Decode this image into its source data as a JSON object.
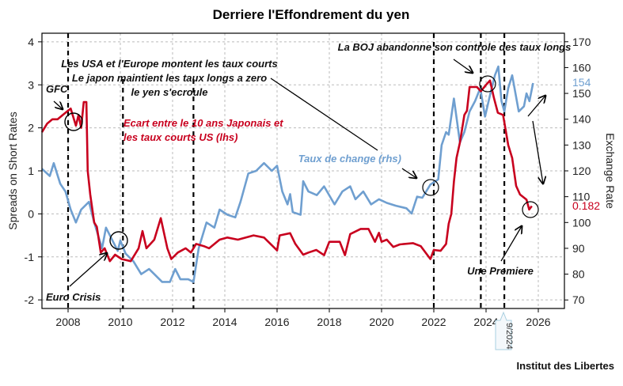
{
  "chart_data": {
    "type": "line",
    "title": "Derriere l'Effondrement du yen",
    "ylabel_left": "Spreads on Short Rates",
    "ylabel_right": "Exchange Rate",
    "xlim": [
      2007,
      2027
    ],
    "ylim_left": [
      -2.2,
      4.2
    ],
    "ylim_right": [
      66.7,
      173.3
    ],
    "x_ticks": [
      2008,
      2010,
      2012,
      2014,
      2016,
      2018,
      2020,
      2022,
      2024,
      2026
    ],
    "y_ticks_left": [
      -2,
      -1,
      0,
      1,
      2,
      3,
      4
    ],
    "y_ticks_right": [
      70,
      80,
      90,
      100,
      110,
      120,
      130,
      140,
      150,
      160,
      170
    ],
    "grid": true,
    "vertical_lines": [
      2008,
      2010.1,
      2012.8,
      2022,
      2023.8,
      2024.7
    ],
    "series": [
      {
        "name": "Ecart entre le 10 ans Japonais et les taux courts US (lhs)",
        "axis": "left",
        "color": "#c8001e",
        "points": [
          [
            2007.0,
            1.9
          ],
          [
            2007.2,
            2.1
          ],
          [
            2007.4,
            2.2
          ],
          [
            2007.6,
            2.2
          ],
          [
            2007.8,
            2.3
          ],
          [
            2008.0,
            2.4
          ],
          [
            2008.1,
            2.45
          ],
          [
            2008.3,
            2.05
          ],
          [
            2008.4,
            2.3
          ],
          [
            2008.5,
            2.0
          ],
          [
            2008.6,
            2.6
          ],
          [
            2008.7,
            2.6
          ],
          [
            2008.75,
            1.0
          ],
          [
            2008.85,
            0.45
          ],
          [
            2009.0,
            -0.2
          ],
          [
            2009.1,
            -0.3
          ],
          [
            2009.25,
            -0.9
          ],
          [
            2009.4,
            -0.8
          ],
          [
            2009.6,
            -1.1
          ],
          [
            2009.8,
            -0.95
          ],
          [
            2010.05,
            -1.05
          ],
          [
            2010.4,
            -1.1
          ],
          [
            2010.7,
            -0.8
          ],
          [
            2010.85,
            -0.4
          ],
          [
            2011.0,
            -0.8
          ],
          [
            2011.3,
            -0.6
          ],
          [
            2011.55,
            -0.1
          ],
          [
            2011.8,
            -0.8
          ],
          [
            2011.95,
            -1.05
          ],
          [
            2012.2,
            -0.9
          ],
          [
            2012.5,
            -0.8
          ],
          [
            2012.7,
            -0.9
          ],
          [
            2012.9,
            -0.7
          ],
          [
            2013.2,
            -0.75
          ],
          [
            2013.4,
            -0.8
          ],
          [
            2013.8,
            -0.6
          ],
          [
            2014.1,
            -0.55
          ],
          [
            2014.5,
            -0.6
          ],
          [
            2015.1,
            -0.5
          ],
          [
            2015.5,
            -0.55
          ],
          [
            2016.0,
            -0.85
          ],
          [
            2016.1,
            -0.5
          ],
          [
            2016.5,
            -0.45
          ],
          [
            2016.7,
            -0.7
          ],
          [
            2017.0,
            -0.95
          ],
          [
            2017.2,
            -0.9
          ],
          [
            2017.5,
            -0.84
          ],
          [
            2017.8,
            -0.96
          ],
          [
            2018.0,
            -0.65
          ],
          [
            2018.4,
            -0.65
          ],
          [
            2018.6,
            -0.96
          ],
          [
            2018.8,
            -0.47
          ],
          [
            2019.2,
            -0.35
          ],
          [
            2019.5,
            -0.35
          ],
          [
            2019.75,
            -0.65
          ],
          [
            2019.9,
            -0.44
          ],
          [
            2020.0,
            -0.65
          ],
          [
            2020.2,
            -0.6
          ],
          [
            2020.45,
            -0.77
          ],
          [
            2020.7,
            -0.71
          ],
          [
            2021.2,
            -0.68
          ],
          [
            2021.5,
            -0.75
          ],
          [
            2021.87,
            -1.05
          ],
          [
            2022.0,
            -0.84
          ],
          [
            2022.26,
            -0.86
          ],
          [
            2022.47,
            -0.7
          ],
          [
            2022.57,
            -0.23
          ],
          [
            2022.67,
            0.0
          ],
          [
            2022.77,
            0.75
          ],
          [
            2022.87,
            1.3
          ],
          [
            2023.0,
            1.66
          ],
          [
            2023.17,
            2.3
          ],
          [
            2023.27,
            2.4
          ],
          [
            2023.37,
            2.95
          ],
          [
            2023.65,
            2.95
          ],
          [
            2023.8,
            2.85
          ],
          [
            2024.0,
            3.0
          ],
          [
            2024.15,
            3.1
          ],
          [
            2024.3,
            2.7
          ],
          [
            2024.45,
            2.35
          ],
          [
            2024.65,
            2.3
          ],
          [
            2024.85,
            1.6
          ],
          [
            2025.0,
            1.3
          ],
          [
            2025.15,
            0.65
          ],
          [
            2025.3,
            0.45
          ],
          [
            2025.55,
            0.33
          ],
          [
            2025.65,
            0.1
          ],
          [
            2025.75,
            0.182
          ]
        ]
      },
      {
        "name": "Taux de change (rhs)",
        "axis": "right",
        "color": "#6f9fd0",
        "points": [
          [
            2007.0,
            120.8
          ],
          [
            2007.3,
            118
          ],
          [
            2007.45,
            123
          ],
          [
            2007.7,
            115
          ],
          [
            2007.9,
            112
          ],
          [
            2008.1,
            105
          ],
          [
            2008.3,
            100
          ],
          [
            2008.5,
            105
          ],
          [
            2008.8,
            108
          ],
          [
            2009.0,
            100
          ],
          [
            2009.3,
            90
          ],
          [
            2009.45,
            98
          ],
          [
            2009.6,
            95
          ],
          [
            2009.9,
            89
          ],
          [
            2010.0,
            93
          ],
          [
            2010.2,
            88
          ],
          [
            2010.5,
            85
          ],
          [
            2010.8,
            80
          ],
          [
            2011.1,
            82
          ],
          [
            2011.3,
            80
          ],
          [
            2011.6,
            77
          ],
          [
            2011.9,
            77
          ],
          [
            2012.1,
            82
          ],
          [
            2012.3,
            78
          ],
          [
            2012.6,
            78
          ],
          [
            2012.8,
            77
          ],
          [
            2013.0,
            90
          ],
          [
            2013.3,
            100
          ],
          [
            2013.6,
            98
          ],
          [
            2013.8,
            105
          ],
          [
            2014.1,
            103
          ],
          [
            2014.4,
            102
          ],
          [
            2014.6,
            108
          ],
          [
            2014.9,
            119
          ],
          [
            2015.2,
            120
          ],
          [
            2015.5,
            123
          ],
          [
            2015.8,
            120
          ],
          [
            2016.0,
            122
          ],
          [
            2016.2,
            112
          ],
          [
            2016.4,
            107
          ],
          [
            2016.5,
            111
          ],
          [
            2016.6,
            104
          ],
          [
            2016.9,
            103
          ],
          [
            2017.0,
            116
          ],
          [
            2017.2,
            112
          ],
          [
            2017.52,
            110.6
          ],
          [
            2017.8,
            114
          ],
          [
            2018.2,
            107
          ],
          [
            2018.5,
            112
          ],
          [
            2018.8,
            114
          ],
          [
            2019.0,
            109
          ],
          [
            2019.3,
            112
          ],
          [
            2019.6,
            107
          ],
          [
            2019.9,
            109
          ],
          [
            2020.2,
            107.6
          ],
          [
            2020.55,
            106.5
          ],
          [
            2020.95,
            105.5
          ],
          [
            2021.15,
            103.5
          ],
          [
            2021.36,
            110
          ],
          [
            2021.56,
            109.6
          ],
          [
            2021.87,
            114.7
          ],
          [
            2022.17,
            116.7
          ],
          [
            2022.3,
            130
          ],
          [
            2022.47,
            135
          ],
          [
            2022.57,
            134
          ],
          [
            2022.77,
            148
          ],
          [
            2023.0,
            131
          ],
          [
            2023.17,
            135
          ],
          [
            2023.37,
            143
          ],
          [
            2023.58,
            147
          ],
          [
            2023.78,
            152
          ],
          [
            2023.96,
            141
          ],
          [
            2024.19,
            151
          ],
          [
            2024.34,
            157
          ],
          [
            2024.47,
            160.4
          ],
          [
            2024.59,
            147
          ],
          [
            2024.7,
            143
          ],
          [
            2024.85,
            152
          ],
          [
            2025.0,
            157
          ],
          [
            2025.25,
            143
          ],
          [
            2025.45,
            145
          ],
          [
            2025.55,
            150
          ],
          [
            2025.66,
            147
          ],
          [
            2025.8,
            154
          ]
        ]
      }
    ],
    "last_values": {
      "left": "0.182",
      "right": "154"
    },
    "annotations": {
      "gfc": "GFC",
      "euro_crisis": "Euro Crisis",
      "usa_line1": "Les USA et l'Europe montent les taux courts",
      "usa_line2": "Le japon maintient les taux longs a zero",
      "usa_line3": "le yen s'ecroule",
      "red_label1": "Ecart entre le 10 ans Japonais et",
      "red_label2": "les taux courts US  (lhs)",
      "blue_label": "Taux de change (rhs)",
      "boj": "La BOJ abandonne son controle des taux longs",
      "une_premiere": "Une Premiere",
      "callout": "9/2024"
    },
    "source": "Institut des Libertes"
  }
}
